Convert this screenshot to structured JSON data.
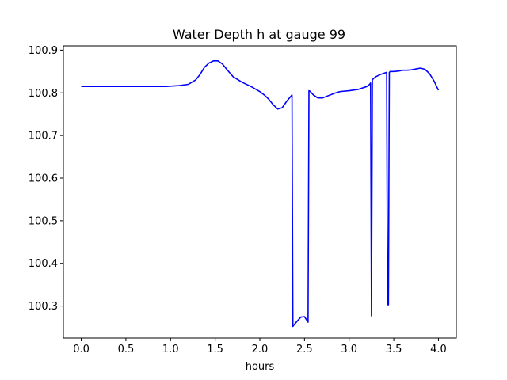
{
  "chart_data": {
    "type": "line",
    "title": "Water Depth h at gauge 99",
    "xlabel": "hours",
    "ylabel": "",
    "xlim": [
      -0.2,
      4.2
    ],
    "ylim": [
      100.225,
      100.91
    ],
    "grid": false,
    "x_ticks": [
      0.0,
      0.5,
      1.0,
      1.5,
      2.0,
      2.5,
      3.0,
      3.5,
      4.0
    ],
    "x_tick_labels": [
      "0.0",
      "0.5",
      "1.0",
      "1.5",
      "2.0",
      "2.5",
      "3.0",
      "3.5",
      "4.0"
    ],
    "y_ticks": [
      100.3,
      100.4,
      100.5,
      100.6,
      100.7,
      100.8,
      100.9
    ],
    "y_tick_labels": [
      "100.3",
      "100.4",
      "100.5",
      "100.6",
      "100.7",
      "100.8",
      "100.9"
    ],
    "series": [
      {
        "color": "#0000ff",
        "x": [
          0.0,
          0.5,
          0.95,
          1.1,
          1.2,
          1.28,
          1.33,
          1.38,
          1.43,
          1.48,
          1.53,
          1.58,
          1.63,
          1.7,
          1.8,
          1.9,
          2.0,
          2.05,
          2.1,
          2.15,
          2.2,
          2.25,
          2.3,
          2.36,
          2.37,
          2.38,
          2.42,
          2.46,
          2.5,
          2.54,
          2.55,
          2.56,
          2.6,
          2.65,
          2.7,
          2.75,
          2.85,
          2.9,
          3.0,
          3.1,
          3.2,
          3.23,
          3.24,
          3.25,
          3.26,
          3.27,
          3.3,
          3.35,
          3.42,
          3.43,
          3.44,
          3.45,
          3.46,
          3.5,
          3.55,
          3.6,
          3.65,
          3.7,
          3.75,
          3.8,
          3.85,
          3.9,
          3.95,
          4.0
        ],
        "y": [
          100.815,
          100.815,
          100.815,
          100.817,
          100.82,
          100.83,
          100.843,
          100.86,
          100.87,
          100.875,
          100.875,
          100.868,
          100.855,
          100.838,
          100.825,
          100.815,
          100.803,
          100.795,
          100.785,
          100.772,
          100.762,
          100.765,
          100.78,
          100.795,
          100.252,
          100.255,
          100.265,
          100.274,
          100.275,
          100.262,
          100.805,
          100.804,
          100.795,
          100.788,
          100.788,
          100.792,
          100.8,
          100.803,
          100.805,
          100.808,
          100.815,
          100.82,
          100.823,
          100.277,
          100.83,
          100.833,
          100.838,
          100.843,
          100.848,
          100.303,
          100.303,
          100.848,
          100.85,
          100.85,
          100.851,
          100.853,
          100.853,
          100.854,
          100.856,
          100.858,
          100.855,
          100.845,
          100.828,
          100.806
        ]
      }
    ]
  }
}
